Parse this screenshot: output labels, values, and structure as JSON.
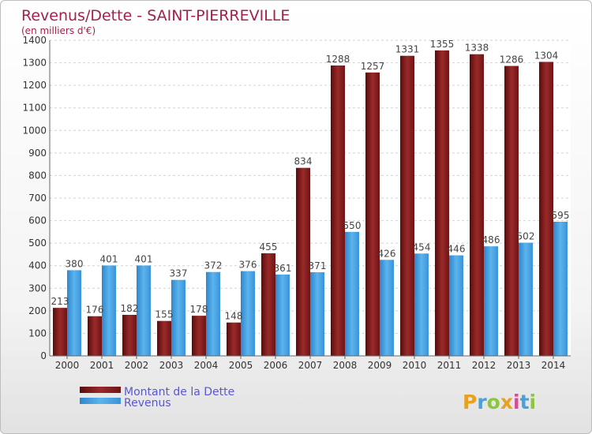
{
  "chart_data": {
    "type": "bar",
    "title": "Revenus/Dette - SAINT-PIERREVILLE",
    "subtitle": "(en milliers d'€)",
    "categories": [
      "2000",
      "2001",
      "2002",
      "2003",
      "2004",
      "2005",
      "2006",
      "2007",
      "2008",
      "2009",
      "2010",
      "2011",
      "2012",
      "2013",
      "2014"
    ],
    "series": [
      {
        "name": "Montant de la Dette",
        "color": "#8b1a1a",
        "values": [
          213,
          176,
          182,
          155,
          178,
          148,
          455,
          834,
          1288,
          1257,
          1331,
          1355,
          1338,
          1286,
          1304
        ]
      },
      {
        "name": "Revenus",
        "color": "#3a97dd",
        "values": [
          380,
          401,
          401,
          337,
          372,
          376,
          361,
          371,
          550,
          426,
          454,
          446,
          486,
          502,
          595
        ]
      }
    ],
    "y_ticks": [
      0,
      100,
      200,
      300,
      400,
      500,
      600,
      700,
      800,
      900,
      1000,
      1100,
      1200,
      1300,
      1400
    ],
    "ylim": [
      0,
      1400
    ],
    "grid": true,
    "legend_position": "bottom-left"
  },
  "branding": {
    "logo_text": "Proxiti",
    "logo_colors": [
      "#e8a020",
      "#4aa0d8",
      "#8cc63f",
      "#e8a020",
      "#d64a9a",
      "#4aa0d8",
      "#8cc63f"
    ]
  }
}
